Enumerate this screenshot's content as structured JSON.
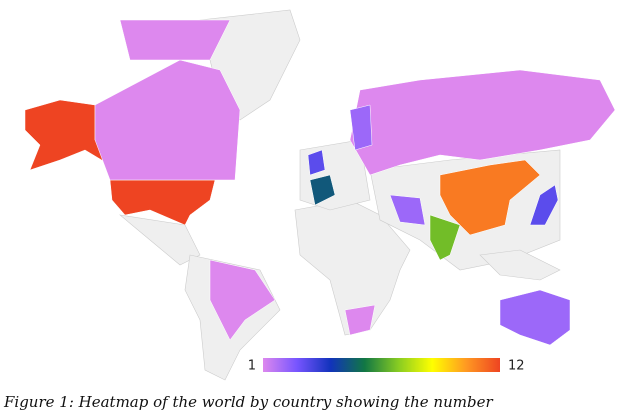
{
  "map": {
    "region_values": [
      12,
      12,
      1,
      1,
      1,
      1,
      3,
      5,
      1,
      2,
      2,
      11,
      7,
      3,
      2
    ],
    "scale": {
      "min": 1,
      "max": 12,
      "colors": [
        "#dd88ee",
        "#7755ff",
        "#1133bb",
        "#117744",
        "#88cc22",
        "#ffff00",
        "#ff9922",
        "#ee4422"
      ]
    }
  },
  "caption": "Figure 1: Heatmap of the world by country showing the number"
}
